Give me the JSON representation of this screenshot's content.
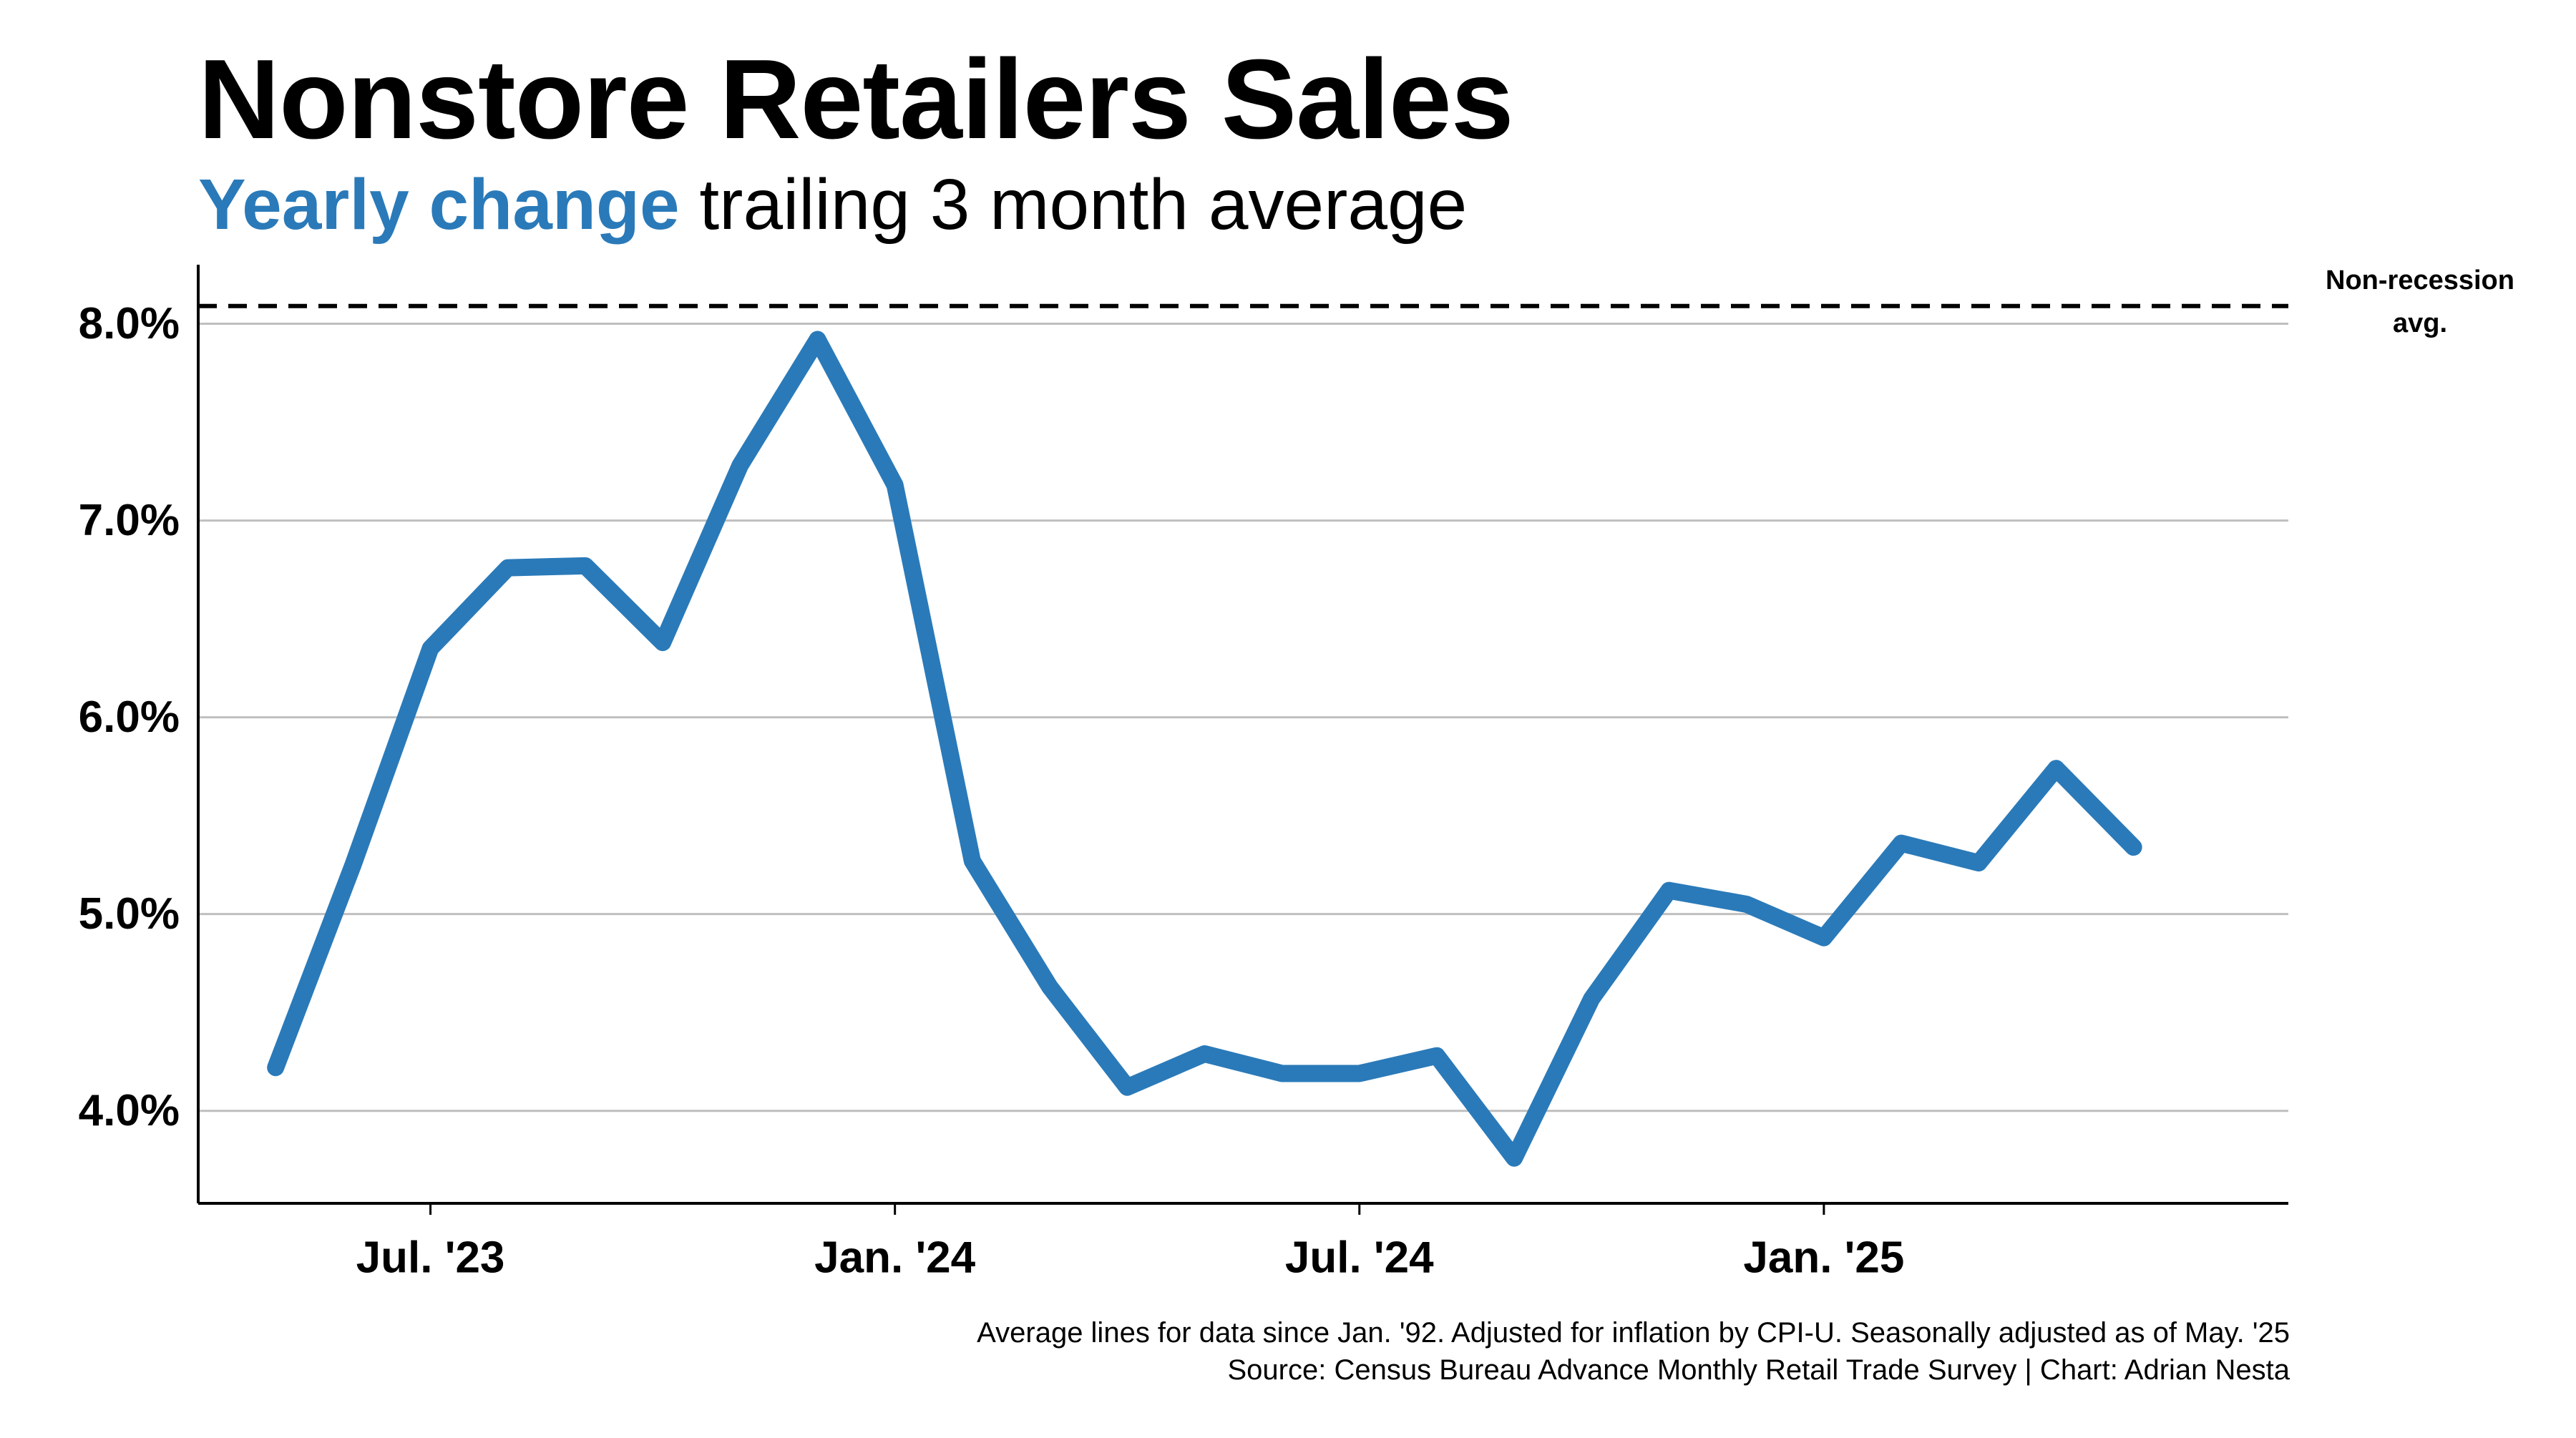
{
  "header": {
    "title": "Nonstore Retailers Sales",
    "subtitle_accent": "Yearly change",
    "subtitle_rest": " trailing 3 month average",
    "accent_color": "#2a7ab9"
  },
  "footer": {
    "note": "Average lines for data since Jan. '92. Adjusted for inflation by CPI-U. Seasonally adjusted as of May. '25",
    "source": "Source: Census Bureau Advance Monthly Retail Trade Survey | Chart: Adrian Nesta"
  },
  "chart_data": {
    "type": "line",
    "x": [
      "2023-05",
      "2023-06",
      "2023-07",
      "2023-08",
      "2023-09",
      "2023-10",
      "2023-11",
      "2023-12",
      "2024-01",
      "2024-02",
      "2024-03",
      "2024-04",
      "2024-05",
      "2024-06",
      "2024-07",
      "2024-08",
      "2024-09",
      "2024-10",
      "2024-11",
      "2024-12",
      "2025-01",
      "2025-02",
      "2025-03",
      "2025-04",
      "2025-05"
    ],
    "series": [
      {
        "color": "#2a7ab9",
        "values": [
          4.22,
          5.25,
          6.35,
          6.76,
          6.77,
          6.38,
          7.28,
          7.92,
          7.18,
          5.27,
          4.63,
          4.12,
          4.29,
          4.19,
          4.19,
          4.28,
          3.76,
          4.57,
          5.12,
          5.05,
          4.88,
          5.36,
          5.26,
          5.74,
          5.34
        ]
      }
    ],
    "ylim": [
      3.53,
      8.3
    ],
    "xlim": [
      "2023-04",
      "2025-07"
    ],
    "yticks": [
      4.0,
      5.0,
      6.0,
      7.0,
      8.0
    ],
    "ytick_labels": [
      "4.0%",
      "5.0%",
      "6.0%",
      "7.0%",
      "8.0%"
    ],
    "xticks": [
      "2023-07",
      "2024-01",
      "2024-07",
      "2025-01"
    ],
    "xtick_labels": [
      "Jul. '23",
      "Jan. '24",
      "Jul. '24",
      "Jan. '25"
    ],
    "reference_line": {
      "value": 8.09,
      "label_lines": [
        "Non-recession",
        "avg."
      ],
      "style": "dashed",
      "color": "#000000"
    },
    "grid": "horizontal",
    "grid_color": "#bfbfbf",
    "xlabel": "",
    "ylabel": ""
  }
}
